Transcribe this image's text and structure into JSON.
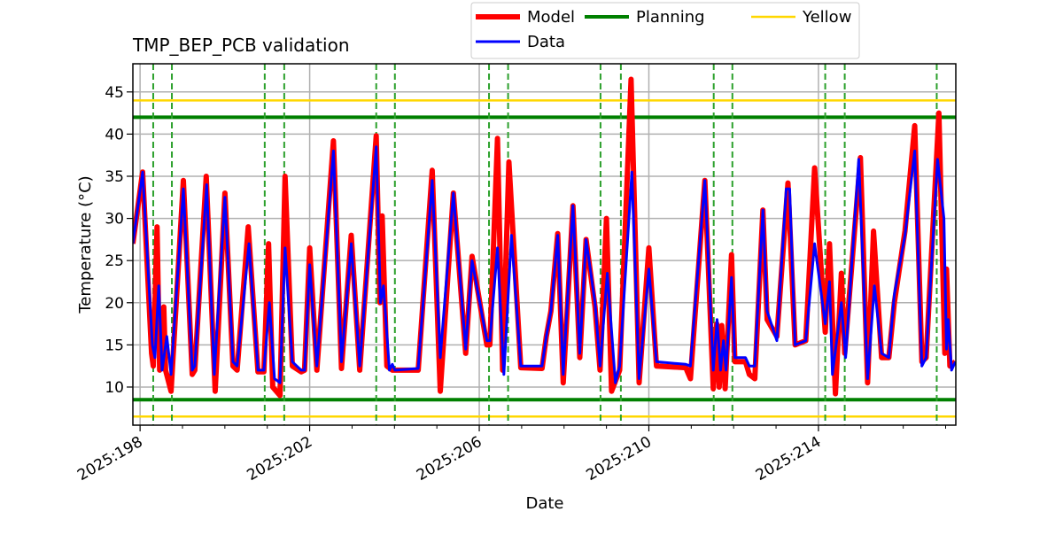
{
  "chart_data": {
    "type": "line",
    "title": "TMP_BEP_PCB validation",
    "xlabel": "Date",
    "ylabel": "Temperature (°C)",
    "xlim": [
      197.83,
      217.24
    ],
    "ylim": [
      5.48,
      48.34
    ],
    "grid": true,
    "legend_placement": "top-center-outside",
    "x_ticks": [
      198,
      202,
      206,
      210,
      214
    ],
    "x_tick_labels": [
      "2025:198",
      "2025:202",
      "2025:206",
      "2025:210",
      "2025:214"
    ],
    "x_minor_ticks": [
      199,
      200,
      201,
      203,
      204,
      205,
      207,
      208,
      209,
      211,
      212,
      213,
      215,
      216,
      217
    ],
    "y_ticks": [
      10,
      15,
      20,
      25,
      30,
      35,
      40,
      45
    ],
    "y_tick_labels": [
      "10",
      "15",
      "20",
      "25",
      "30",
      "35",
      "40",
      "45"
    ],
    "legend": [
      {
        "label": "Model",
        "color": "#ff0000"
      },
      {
        "label": "Data",
        "color": "#0000ff"
      },
      {
        "label": "Planning",
        "color": "#008000"
      },
      {
        "label": "Yellow",
        "color": "#ffd700"
      }
    ],
    "planning_limits": [
      42,
      8.5
    ],
    "yellow_limits": [
      44,
      6.5
    ],
    "vertical_markers": [
      198.31,
      198.75,
      200.94,
      201.4,
      203.57,
      204.01,
      206.23,
      206.68,
      208.86,
      209.34,
      211.53,
      211.97,
      214.16,
      214.62,
      216.79
    ],
    "series": [
      {
        "name": "Model",
        "color": "#ff0000",
        "points": [
          [
            197.83,
            27
          ],
          [
            198.06,
            35.5
          ],
          [
            198.27,
            14
          ],
          [
            198.31,
            12.5
          ],
          [
            198.4,
            29
          ],
          [
            198.46,
            12
          ],
          [
            198.56,
            19.5
          ],
          [
            198.6,
            12
          ],
          [
            198.73,
            9.5
          ],
          [
            199.02,
            34.5
          ],
          [
            199.23,
            11.5
          ],
          [
            199.29,
            12
          ],
          [
            199.56,
            35
          ],
          [
            199.77,
            9.5
          ],
          [
            200.0,
            33
          ],
          [
            200.19,
            12.5
          ],
          [
            200.29,
            12
          ],
          [
            200.55,
            29
          ],
          [
            200.78,
            11.8
          ],
          [
            200.92,
            11.8
          ],
          [
            201.03,
            27
          ],
          [
            201.13,
            10
          ],
          [
            201.3,
            9
          ],
          [
            201.42,
            35
          ],
          [
            201.59,
            12.5
          ],
          [
            201.8,
            11.8
          ],
          [
            201.88,
            12
          ],
          [
            202.0,
            26.5
          ],
          [
            202.17,
            12
          ],
          [
            202.56,
            39.2
          ],
          [
            202.75,
            12.2
          ],
          [
            202.98,
            28
          ],
          [
            203.18,
            12
          ],
          [
            203.57,
            39.8
          ],
          [
            203.66,
            20
          ],
          [
            203.71,
            30.3
          ],
          [
            203.82,
            12.5
          ],
          [
            203.95,
            12
          ],
          [
            204.56,
            12
          ],
          [
            204.89,
            35.7
          ],
          [
            205.08,
            9.5
          ],
          [
            205.39,
            33
          ],
          [
            205.68,
            14
          ],
          [
            205.83,
            25.5
          ],
          [
            206.18,
            15
          ],
          [
            206.25,
            15
          ],
          [
            206.43,
            39.5
          ],
          [
            206.55,
            12
          ],
          [
            206.7,
            36.7
          ],
          [
            206.98,
            12.3
          ],
          [
            207.48,
            12.2
          ],
          [
            207.58,
            16
          ],
          [
            207.69,
            19
          ],
          [
            207.85,
            28.2
          ],
          [
            207.98,
            10.5
          ],
          [
            208.21,
            31.5
          ],
          [
            208.37,
            13.5
          ],
          [
            208.52,
            27.5
          ],
          [
            208.73,
            19.5
          ],
          [
            208.85,
            12
          ],
          [
            209.0,
            30
          ],
          [
            209.12,
            9.5
          ],
          [
            209.31,
            12
          ],
          [
            209.58,
            46.5
          ],
          [
            209.77,
            10.5
          ],
          [
            210.0,
            26.5
          ],
          [
            210.18,
            12.5
          ],
          [
            210.87,
            12.3
          ],
          [
            210.98,
            11
          ],
          [
            211.32,
            34.5
          ],
          [
            211.52,
            9.8
          ],
          [
            211.6,
            17.5
          ],
          [
            211.66,
            10
          ],
          [
            211.72,
            17.3
          ],
          [
            211.8,
            9.8
          ],
          [
            211.95,
            25.7
          ],
          [
            212.03,
            13
          ],
          [
            212.28,
            13
          ],
          [
            212.37,
            11.5
          ],
          [
            212.5,
            11
          ],
          [
            212.69,
            31
          ],
          [
            212.79,
            18
          ],
          [
            213.02,
            16
          ],
          [
            213.28,
            34.2
          ],
          [
            213.45,
            15
          ],
          [
            213.7,
            15.5
          ],
          [
            213.91,
            36
          ],
          [
            214.16,
            16.5
          ],
          [
            214.26,
            27
          ],
          [
            214.4,
            9.2
          ],
          [
            214.54,
            23.5
          ],
          [
            214.62,
            14
          ],
          [
            214.99,
            37.2
          ],
          [
            215.16,
            10.5
          ],
          [
            215.3,
            28.5
          ],
          [
            215.49,
            13.5
          ],
          [
            215.66,
            13.5
          ],
          [
            215.79,
            20
          ],
          [
            216.04,
            28.5
          ],
          [
            216.27,
            41
          ],
          [
            216.44,
            13
          ],
          [
            216.54,
            13.5
          ],
          [
            216.84,
            42.5
          ],
          [
            216.98,
            14
          ],
          [
            217.02,
            24
          ],
          [
            217.1,
            12.5
          ],
          [
            217.23,
            13
          ]
        ]
      },
      {
        "name": "Data",
        "color": "#0000ff",
        "points": [
          [
            197.83,
            27
          ],
          [
            198.06,
            35.5
          ],
          [
            198.29,
            15
          ],
          [
            198.35,
            13.5
          ],
          [
            198.44,
            22
          ],
          [
            198.52,
            12
          ],
          [
            198.63,
            16
          ],
          [
            198.73,
            11.5
          ],
          [
            199.02,
            33.5
          ],
          [
            199.23,
            12
          ],
          [
            199.29,
            12.5
          ],
          [
            199.57,
            34
          ],
          [
            199.75,
            11.5
          ],
          [
            200.0,
            32.5
          ],
          [
            200.19,
            13
          ],
          [
            200.29,
            12.5
          ],
          [
            200.57,
            27
          ],
          [
            200.78,
            12
          ],
          [
            200.92,
            12
          ],
          [
            201.05,
            20
          ],
          [
            201.17,
            11
          ],
          [
            201.3,
            10.5
          ],
          [
            201.42,
            26.5
          ],
          [
            201.59,
            13
          ],
          [
            201.8,
            12
          ],
          [
            201.88,
            12
          ],
          [
            202.0,
            24.5
          ],
          [
            202.17,
            12.5
          ],
          [
            202.56,
            38
          ],
          [
            202.75,
            13
          ],
          [
            202.98,
            27
          ],
          [
            203.18,
            12.5
          ],
          [
            203.57,
            38.5
          ],
          [
            203.67,
            20
          ],
          [
            203.74,
            22
          ],
          [
            203.88,
            12
          ],
          [
            203.95,
            12.7
          ],
          [
            204.01,
            12
          ],
          [
            204.56,
            12.2
          ],
          [
            204.89,
            34.5
          ],
          [
            205.08,
            13.5
          ],
          [
            205.39,
            33
          ],
          [
            205.68,
            14.5
          ],
          [
            205.83,
            25
          ],
          [
            206.18,
            15.5
          ],
          [
            206.25,
            15.5
          ],
          [
            206.43,
            26.5
          ],
          [
            206.58,
            11.5
          ],
          [
            206.76,
            28
          ],
          [
            206.98,
            12.5
          ],
          [
            207.48,
            12.5
          ],
          [
            207.58,
            16
          ],
          [
            207.69,
            19
          ],
          [
            207.85,
            28
          ],
          [
            207.98,
            11.5
          ],
          [
            208.21,
            31.5
          ],
          [
            208.37,
            14
          ],
          [
            208.52,
            27.5
          ],
          [
            208.73,
            20
          ],
          [
            208.85,
            12.5
          ],
          [
            209.02,
            23.5
          ],
          [
            209.21,
            10.5
          ],
          [
            209.31,
            12.5
          ],
          [
            209.6,
            35.5
          ],
          [
            209.77,
            11
          ],
          [
            210.0,
            24
          ],
          [
            210.18,
            13
          ],
          [
            210.87,
            12.7
          ],
          [
            210.98,
            12.5
          ],
          [
            211.32,
            34.5
          ],
          [
            211.52,
            12
          ],
          [
            211.61,
            18
          ],
          [
            211.69,
            12
          ],
          [
            211.76,
            15.5
          ],
          [
            211.82,
            12
          ],
          [
            211.95,
            23
          ],
          [
            212.03,
            13.5
          ],
          [
            212.28,
            13.5
          ],
          [
            212.37,
            12.5
          ],
          [
            212.5,
            12.5
          ],
          [
            212.69,
            31
          ],
          [
            212.79,
            19
          ],
          [
            213.02,
            15.5
          ],
          [
            213.24,
            33.5
          ],
          [
            213.32,
            33.5
          ],
          [
            213.45,
            15
          ],
          [
            213.7,
            15.5
          ],
          [
            213.91,
            27
          ],
          [
            214.16,
            17.5
          ],
          [
            214.26,
            22.5
          ],
          [
            214.33,
            11.5
          ],
          [
            214.54,
            20
          ],
          [
            214.64,
            13.5
          ],
          [
            214.95,
            37
          ],
          [
            215.16,
            11
          ],
          [
            215.32,
            22
          ],
          [
            215.49,
            14
          ],
          [
            215.66,
            13.5
          ],
          [
            215.79,
            21
          ],
          [
            216.04,
            28
          ],
          [
            216.27,
            38
          ],
          [
            216.44,
            12.5
          ],
          [
            216.54,
            13.5
          ],
          [
            216.81,
            37
          ],
          [
            216.96,
            30
          ],
          [
            217.02,
            14.5
          ],
          [
            217.06,
            18
          ],
          [
            217.14,
            12
          ],
          [
            217.23,
            13
          ]
        ]
      }
    ]
  }
}
